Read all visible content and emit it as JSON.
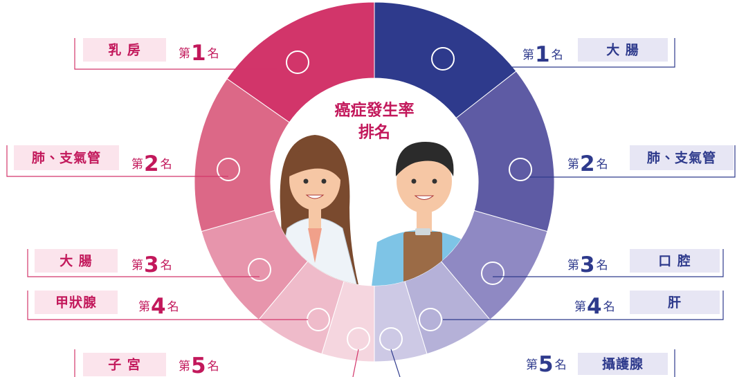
{
  "title": [
    "癌症發生率",
    "排名"
  ],
  "women": [
    {
      "organ": "乳 房",
      "rank": {
        "prefix": "第",
        "number": 1,
        "suffix": "名"
      }
    },
    {
      "organ": "肺、支氣管",
      "rank": {
        "prefix": "第",
        "number": 2,
        "suffix": "名"
      }
    },
    {
      "organ": "大 腸",
      "rank": {
        "prefix": "第",
        "number": 3,
        "suffix": "名"
      }
    },
    {
      "organ": "甲狀腺",
      "rank": {
        "prefix": "第",
        "number": 4,
        "suffix": "名"
      }
    },
    {
      "organ": "子 宮",
      "rank": {
        "prefix": "第",
        "number": 5,
        "suffix": "名"
      }
    }
  ],
  "men": [
    {
      "organ": "大 腸",
      "rank": {
        "prefix": "第",
        "number": 1,
        "suffix": "名"
      }
    },
    {
      "organ": "肺、支氣管",
      "rank": {
        "prefix": "第",
        "number": 2,
        "suffix": "名"
      }
    },
    {
      "organ": "口 腔",
      "rank": {
        "prefix": "第",
        "number": 3,
        "suffix": "名"
      }
    },
    {
      "organ": "肝",
      "rank": {
        "prefix": "第",
        "number": 4,
        "suffix": "名"
      }
    },
    {
      "organ": "攝護腺",
      "rank": {
        "prefix": "第",
        "number": 5,
        "suffix": "名"
      }
    }
  ]
}
